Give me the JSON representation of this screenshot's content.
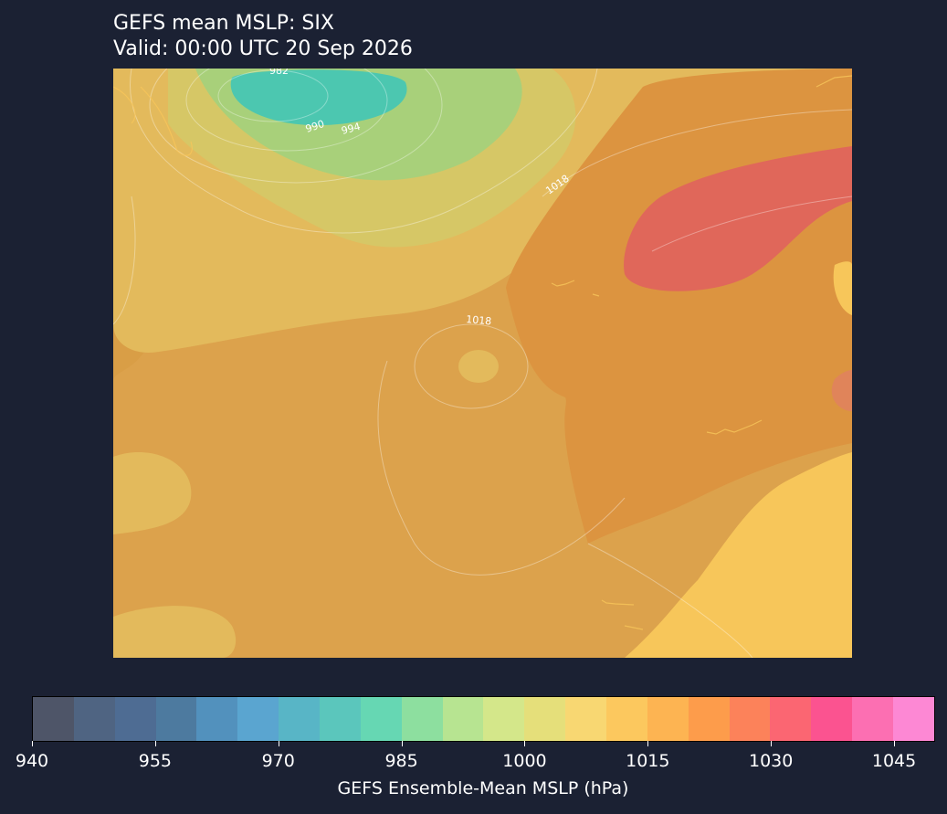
{
  "header": {
    "title": "GEFS mean MSLP: SIX",
    "valid": "Valid: 00:00 UTC 20 Sep 2026"
  },
  "map": {
    "contour_labels": [
      "982",
      "990",
      "994",
      "1018",
      "1018"
    ],
    "colors": {
      "background_field": "#dca24c",
      "low_center": "#4cc7b0",
      "high_center": "#e0675a",
      "coast_land": "#f7c65a"
    }
  },
  "colorbar": {
    "label": "GEFS Ensemble-Mean MSLP (hPa)",
    "min": 940,
    "max": 1050,
    "step": 5,
    "tick_values": [
      "940",
      "955",
      "970",
      "985",
      "1000",
      "1015",
      "1030",
      "1045"
    ],
    "colors": [
      "#4e5568",
      "#4f6482",
      "#4e6c93",
      "#4d7a9f",
      "#5291bd",
      "#5aa5d0",
      "#58b5c6",
      "#5bc6bc",
      "#66d7b3",
      "#8ddf9f",
      "#b7e491",
      "#d4e78a",
      "#e5df7a",
      "#f8d772",
      "#fcc85e",
      "#fdb452",
      "#fd9c4b",
      "#fc825a",
      "#fb6672",
      "#fb5390",
      "#fc6fb2",
      "#fd88d4"
    ]
  }
}
